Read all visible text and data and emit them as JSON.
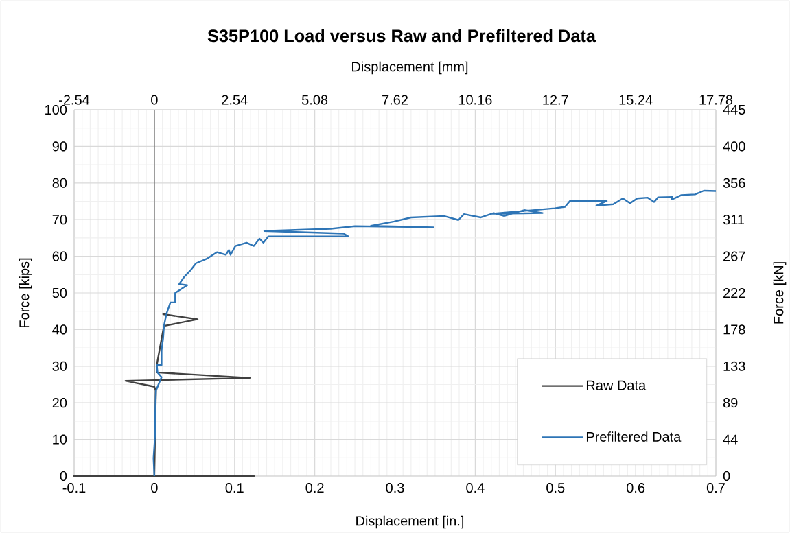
{
  "chart_data": {
    "type": "line",
    "title": "S35P100 Load versus Raw and Prefiltered Data",
    "xlabel": "Displacement [in.]",
    "x2label": "Displacement [mm]",
    "ylabel": "Force [kips]",
    "y2label": "Force [kN]",
    "xlim": [
      -0.1,
      0.7
    ],
    "xticks": [
      -0.1,
      0,
      0.1,
      0.2,
      0.3,
      0.4,
      0.5,
      0.6,
      0.7
    ],
    "ylim": [
      0,
      100
    ],
    "yticks": [
      0,
      10,
      20,
      30,
      40,
      50,
      60,
      70,
      80,
      90,
      100
    ],
    "x2lim": [
      -2.54,
      17.78
    ],
    "x2ticks": [
      -2.54,
      0,
      2.54,
      5.08,
      7.62,
      10.16,
      12.7,
      15.24,
      17.78
    ],
    "y2lim": [
      0,
      445
    ],
    "y2ticks": [
      0,
      {
        "value": 44.5,
        "label": "44"
      },
      89,
      {
        "value": 133.5,
        "label": "133"
      },
      178,
      {
        "value": 222.5,
        "label": "222"
      },
      267,
      {
        "value": 311.5,
        "label": "311"
      },
      356,
      {
        "value": 400.5,
        "label": "400"
      },
      445
    ],
    "grid": true,
    "legend": "bottom right",
    "marker": "none",
    "line_style": "solid",
    "ref_lines": [
      {
        "axis": "x",
        "value": 0,
        "color": "#595959"
      }
    ],
    "series": [
      {
        "name": "Raw Data",
        "color": "#404040",
        "x": [
          0.125,
          -0.1,
          0,
          0.002,
          0,
          -0.036,
          0.119,
          0.003,
          0.003,
          0.012,
          0.054,
          0.011,
          0.015
        ],
        "values": [
          0,
          0,
          0,
          23.3,
          24.4,
          26.0,
          26.8,
          28.3,
          30.3,
          41.0,
          42.8,
          44.2,
          44.2
        ]
      },
      {
        "name": "Prefiltered Data",
        "color": "#2e75b6",
        "x": [
          0,
          -0.001,
          0,
          0.001,
          0.001,
          0.002,
          0.009,
          0.004,
          0.003,
          0.009,
          0.009,
          0.011,
          0.012,
          0.015,
          0.02,
          0.026,
          0.026,
          0.041,
          0.031,
          0.037,
          0.046,
          0.052,
          0.066,
          0.078,
          0.089,
          0.093,
          0.095,
          0.101,
          0.115,
          0.124,
          0.131,
          0.136,
          0.142,
          0.242,
          0.236,
          0.137,
          0.22,
          0.25,
          0.348,
          0.27,
          0.299,
          0.32,
          0.361,
          0.379,
          0.386,
          0.407,
          0.423,
          0.436,
          0.461,
          0.484,
          0.42,
          0.499,
          0.512,
          0.518,
          0.564,
          0.551,
          0.572,
          0.584,
          0.593,
          0.602,
          0.615,
          0.623,
          0.628,
          0.646,
          0.645,
          0.657,
          0.674,
          0.685,
          0.7
        ],
        "values": [
          0,
          4.9,
          8.2,
          11.6,
          16.3,
          23.3,
          27.0,
          28.3,
          30.3,
          30.3,
          34.3,
          37.7,
          41.0,
          44.2,
          47.4,
          47.4,
          50.0,
          52.1,
          52.4,
          54.3,
          56.4,
          58.1,
          59.4,
          61.1,
          60.4,
          61.7,
          60.4,
          62.8,
          63.7,
          62.8,
          64.8,
          63.7,
          65.4,
          65.4,
          66.2,
          66.9,
          67.5,
          68.2,
          67.9,
          68.3,
          69.5,
          70.6,
          71.0,
          69.9,
          71.5,
          70.6,
          71.8,
          71.0,
          72.6,
          71.8,
          71.6,
          73.1,
          73.5,
          75.1,
          75.1,
          73.8,
          74.2,
          75.8,
          74.5,
          75.8,
          76.0,
          74.8,
          76.1,
          76.2,
          75.5,
          76.7,
          76.9,
          77.9,
          77.8
        ]
      }
    ]
  }
}
